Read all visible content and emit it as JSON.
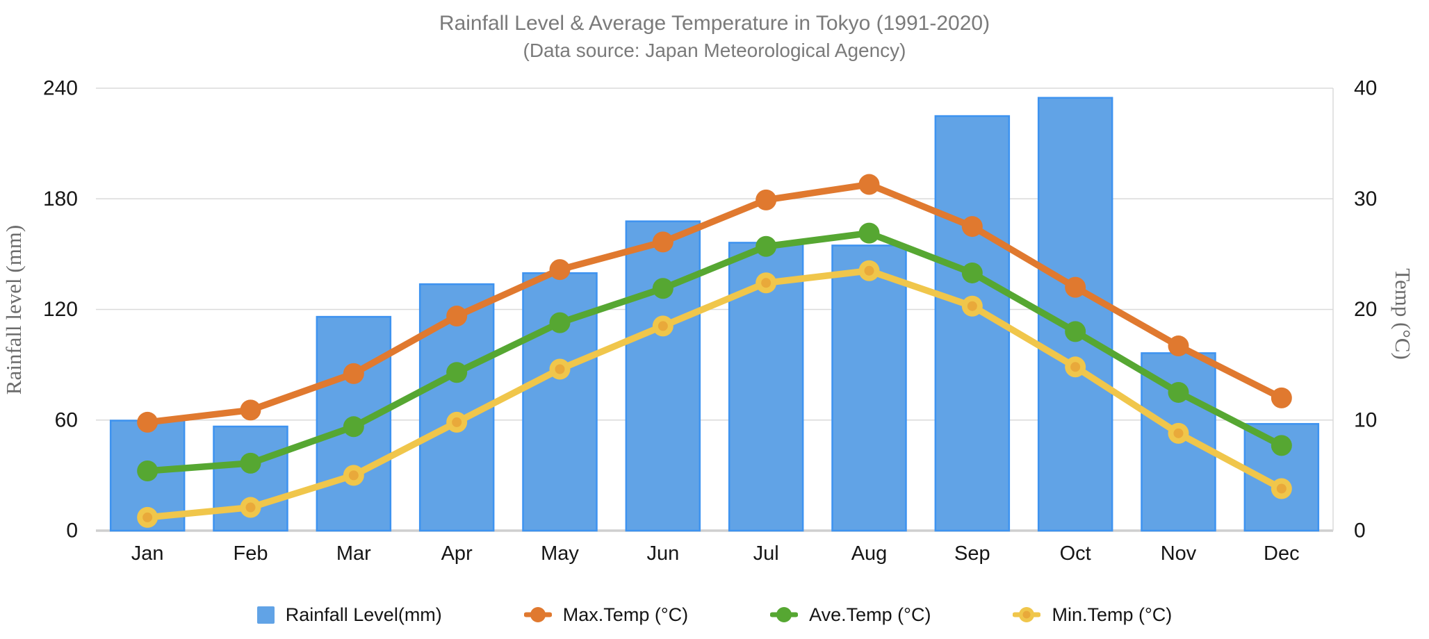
{
  "chart_data": {
    "type": "bar+line combo (dual axis)",
    "title": "Rainfall Level & Average Temperature in Tokyo (1991-2020)",
    "subtitle": "(Data source: Japan Meteorological Agency)",
    "categories": [
      "Jan",
      "Feb",
      "Mar",
      "Apr",
      "May",
      "Jun",
      "Jul",
      "Aug",
      "Sep",
      "Oct",
      "Nov",
      "Dec"
    ],
    "ylabel_left": "Rainfall level (mm)",
    "ylabel_right": "Temp (°C)",
    "ylim_left": [
      0,
      240
    ],
    "ylim_right": [
      0,
      40
    ],
    "yticks_left": [
      0,
      60,
      120,
      180,
      240
    ],
    "yticks_right": [
      0,
      10,
      20,
      30,
      40
    ],
    "grid": "horizontal gridlines, light gray, right plot border, no left border",
    "legend_position": "bottom",
    "series": [
      {
        "name": "Rainfall Level(mm)",
        "type": "bar",
        "axis": "left",
        "color": "#61A3E6",
        "border_color": "#3E93F0",
        "values": [
          59.7,
          56.5,
          116.0,
          133.7,
          139.7,
          167.8,
          156.2,
          154.7,
          224.9,
          234.8,
          96.3,
          57.9
        ]
      },
      {
        "name": "Max.Temp (°C)",
        "type": "line",
        "axis": "right",
        "color": "#E0792F",
        "values": [
          9.8,
          10.9,
          14.2,
          19.4,
          23.6,
          26.1,
          29.9,
          31.3,
          27.5,
          22.0,
          16.7,
          12.0
        ]
      },
      {
        "name": "Ave.Temp (°C)",
        "type": "line",
        "axis": "right",
        "color": "#56A732",
        "values": [
          5.4,
          6.1,
          9.4,
          14.3,
          18.8,
          21.9,
          25.7,
          26.9,
          23.3,
          18.0,
          12.5,
          7.7
        ]
      },
      {
        "name": "Min.Temp (°C)",
        "type": "line",
        "axis": "right",
        "color": "#F0C64B",
        "marker_core": "#E9A93A",
        "values": [
          1.2,
          2.1,
          5.0,
          9.8,
          14.6,
          18.5,
          22.4,
          23.5,
          20.3,
          14.8,
          8.8,
          3.8
        ]
      }
    ],
    "grid_color": "#DADADA",
    "baseline_color": "#CFCFCF",
    "text_colors": {
      "title": "#7a7a7a",
      "ticks": "#161616",
      "axis_titles": "#6b6b6b",
      "legend": "#151515"
    }
  }
}
